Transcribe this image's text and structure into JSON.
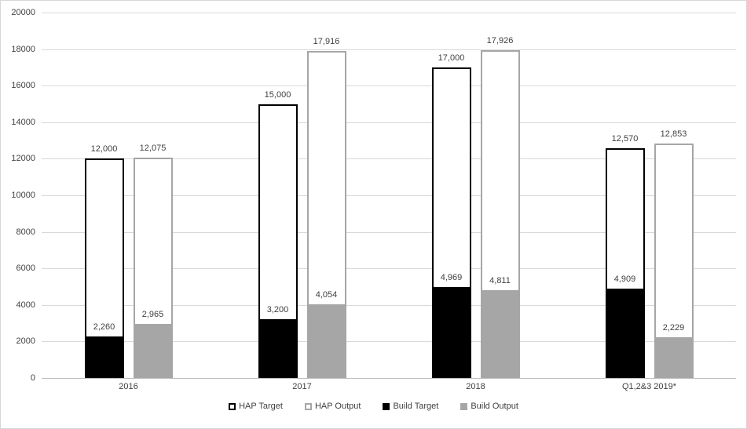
{
  "chart_data": {
    "type": "bar",
    "subtype": "overlapped-column",
    "title": "",
    "xlabel": "",
    "ylabel": "",
    "categories": [
      "2016",
      "2017",
      "2018",
      "Q1,2&3 2019*"
    ],
    "series": [
      {
        "name": "HAP Target",
        "role": "full-bar",
        "pair": "target",
        "values": [
          12000,
          15000,
          17000,
          12570
        ],
        "labels": [
          "12,000",
          "15,000",
          "17,000",
          "12,570"
        ],
        "fill": "#ffffff",
        "border": "#000000",
        "border_width": 2
      },
      {
        "name": "HAP Output",
        "role": "full-bar",
        "pair": "output",
        "values": [
          12075,
          17916,
          17926,
          12853
        ],
        "labels": [
          "12,075",
          "17,916",
          "17,926",
          "12,853"
        ],
        "fill": "#ffffff",
        "border": "#a6a6a6",
        "border_width": 2
      },
      {
        "name": "Build Target",
        "role": "overlay-bottom",
        "pair": "target",
        "values": [
          2260,
          3200,
          4969,
          4909
        ],
        "labels": [
          "2,260",
          "3,200",
          "4,969",
          "4,909"
        ],
        "fill": "#000000",
        "border": "#000000",
        "border_width": 0
      },
      {
        "name": "Build Output",
        "role": "overlay-bottom",
        "pair": "output",
        "values": [
          2965,
          4054,
          4811,
          2229
        ],
        "labels": [
          "2,965",
          "4,054",
          "4,811",
          "2,229"
        ],
        "fill": "#a6a6a6",
        "border": "#a6a6a6",
        "border_width": 0
      }
    ],
    "ylim": [
      0,
      20000
    ],
    "ytick_step": 2000,
    "ytick_labels": [
      "0",
      "2000",
      "4000",
      "6000",
      "8000",
      "10000",
      "12000",
      "14000",
      "16000",
      "18000",
      "20000"
    ],
    "grid": true,
    "legend_position": "bottom",
    "legend": [
      {
        "label": "HAP Target",
        "fill": "#ffffff",
        "border": "#000000"
      },
      {
        "label": "HAP Output",
        "fill": "#ffffff",
        "border": "#a6a6a6"
      },
      {
        "label": "Build Target",
        "fill": "#000000",
        "border": "#000000"
      },
      {
        "label": "Build Output",
        "fill": "#a6a6a6",
        "border": "#a6a6a6"
      }
    ],
    "colors": {
      "grid": "#d9d9d9",
      "axis": "#bfbfbf",
      "label": "#404040",
      "black_series": "#000000",
      "gray_series": "#a6a6a6"
    }
  }
}
